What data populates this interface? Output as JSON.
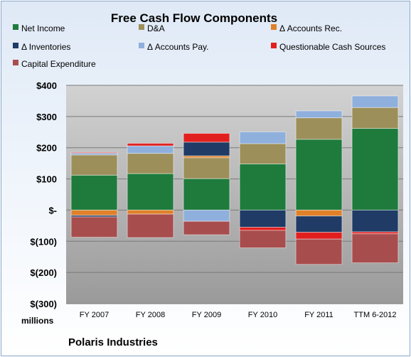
{
  "chart_data": {
    "type": "bar",
    "stacked": true,
    "title": "Free Cash Flow Components",
    "units_label": "millions",
    "footer": "Polaris Industries",
    "categories": [
      "FY 2007",
      "FY 2008",
      "FY 2009",
      "FY 2010",
      "FY 2011",
      "TTM 6-2012"
    ],
    "y_ticks": [
      "$400",
      "$300",
      "$200",
      "$100",
      "$-",
      "$(100)",
      "$(200)",
      "$(300)"
    ],
    "ylim": [
      -300,
      400
    ],
    "grid": true,
    "legend_position": "top",
    "series": [
      {
        "name": "Net Income",
        "color": "#1e7b3c",
        "values": [
          112,
          117,
          101,
          148,
          227,
          262
        ]
      },
      {
        "name": "D&A",
        "color": "#9c8f5a",
        "values": [
          65,
          65,
          67,
          65,
          69,
          67
        ]
      },
      {
        "name": "Δ Accounts Rec.",
        "color": "#e0812a",
        "values": [
          -17,
          -13,
          6,
          0,
          -19,
          0
        ]
      },
      {
        "name": "Δ Inventories",
        "color": "#1f3b66",
        "values": [
          -5,
          0,
          44,
          -55,
          -52,
          -70
        ]
      },
      {
        "name": "Δ Accounts Pay.",
        "color": "#8fb0dd",
        "values": [
          6,
          24,
          -36,
          38,
          22,
          37
        ]
      },
      {
        "name": "Questionable Cash Sources",
        "color": "#e21f1f",
        "values": [
          2,
          8,
          28,
          -10,
          -22,
          -6
        ]
      },
      {
        "name": "Capital Expenditure",
        "color": "#a84d4d",
        "values": [
          -65,
          -75,
          -43,
          -56,
          -81,
          -93
        ]
      }
    ]
  }
}
